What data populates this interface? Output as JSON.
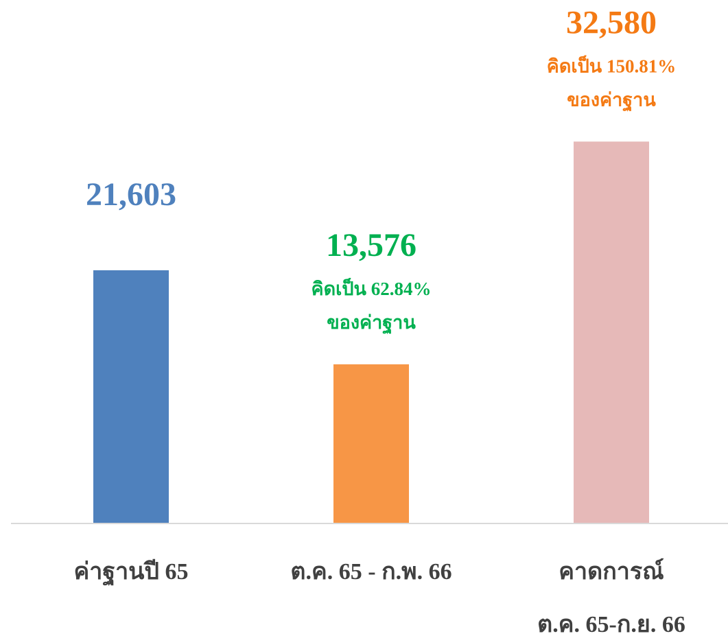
{
  "chart_data": {
    "type": "bar",
    "categories": [
      [
        "ค่าฐานปี 65"
      ],
      [
        "ต.ค. 65 - ก.พ. 66"
      ],
      [
        "คาดการณ์",
        "ต.ค. 65-ก.ย. 66"
      ]
    ],
    "values": [
      21603,
      13576,
      32580
    ],
    "value_labels": [
      "21,603",
      "13,576",
      "32,580"
    ],
    "annotations": [
      [],
      [
        "คิดเป็น 62.84%",
        "ของค่าฐาน"
      ],
      [
        "คิดเป็น 150.81%",
        "ของค่าฐาน"
      ]
    ],
    "colors": [
      "#4f81bd",
      "#f79646",
      "#e6b9b8"
    ],
    "label_colors": [
      "#4f81bd",
      "#00b050",
      "#f47a14"
    ],
    "ylim": [
      0,
      35000
    ]
  }
}
